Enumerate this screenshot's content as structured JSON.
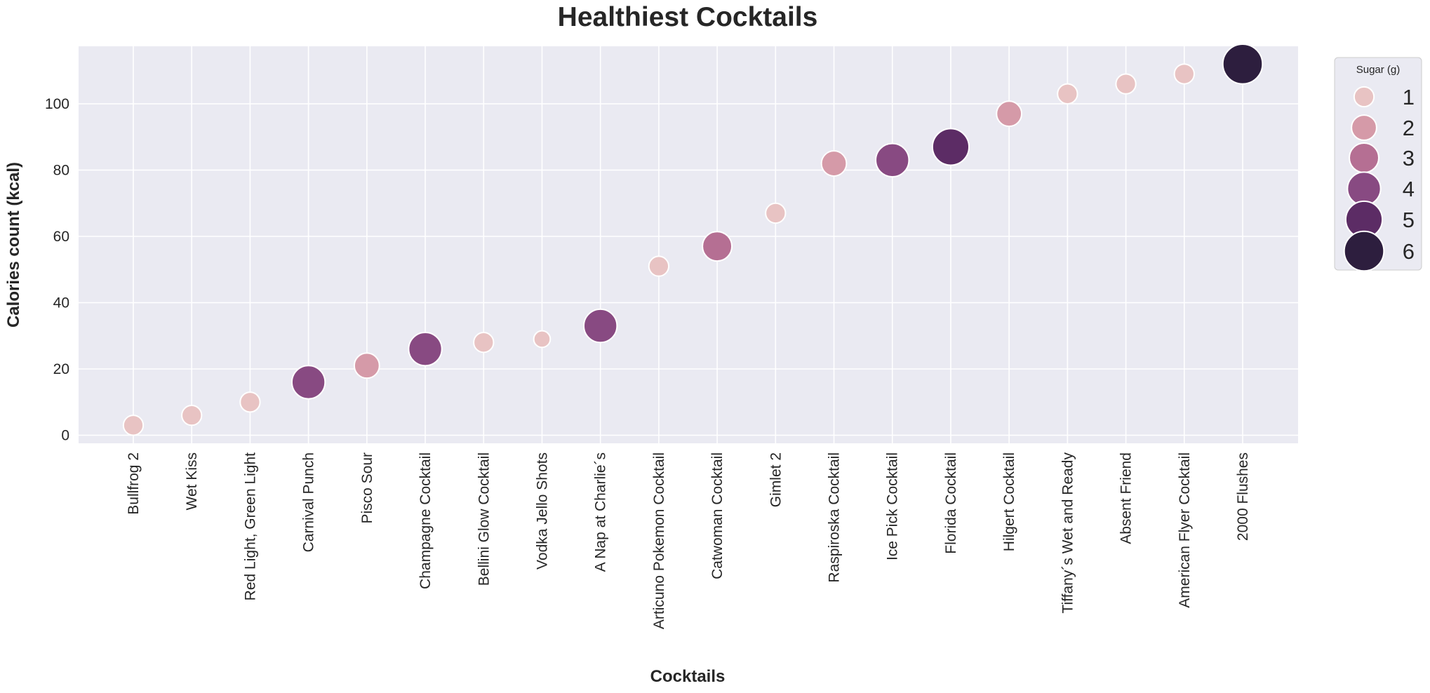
{
  "chart_data": {
    "type": "scatter",
    "title": "Healthiest Cocktails",
    "xlabel": "Cocktails",
    "ylabel": "Calories count (kcal)",
    "ylim": [
      -2,
      117
    ],
    "yticks": [
      0,
      20,
      40,
      60,
      80,
      100
    ],
    "grid": true,
    "legend": {
      "title": "Sugar (g)",
      "placement": "outside-top-right",
      "levels": [
        1,
        2,
        3,
        4,
        5,
        6
      ]
    },
    "categories": [
      "Bullfrog 2",
      "Wet Kiss",
      "Red Light, Green Light",
      "Carnival Punch",
      "Pisco Sour",
      "Champagne Cocktail",
      "Bellini Glow Cocktail",
      "Vodka Jello Shots",
      "A Nap at Charlie´s",
      "Articuno Pokemon Cocktail",
      "Catwoman Cocktail",
      "Gimlet 2",
      "Raspiroska Cocktail",
      "Ice Pick Cocktail",
      "Florida Cocktail",
      "Hilgert Cocktail",
      "Tiffany´s Wet and Ready",
      "Absent Friend",
      "American Flyer Cocktail",
      "2000 Flushes"
    ],
    "calories": [
      3,
      6,
      10,
      16,
      21,
      26,
      28,
      29,
      33,
      51,
      57,
      67,
      82,
      83,
      87,
      97,
      103,
      106,
      109,
      112
    ],
    "sugar": [
      1,
      1,
      1,
      4,
      2,
      4,
      1,
      0.5,
      4,
      1,
      3,
      1,
      2,
      4,
      5,
      2,
      1,
      1,
      1,
      6
    ],
    "colors": {
      "background": "#eaeaf2",
      "grid": "#ffffff",
      "sugar_palette": [
        "#e8c3c3",
        "#d59aa8",
        "#b56f93",
        "#884a82",
        "#5c2c65",
        "#2d1e3e"
      ]
    }
  }
}
